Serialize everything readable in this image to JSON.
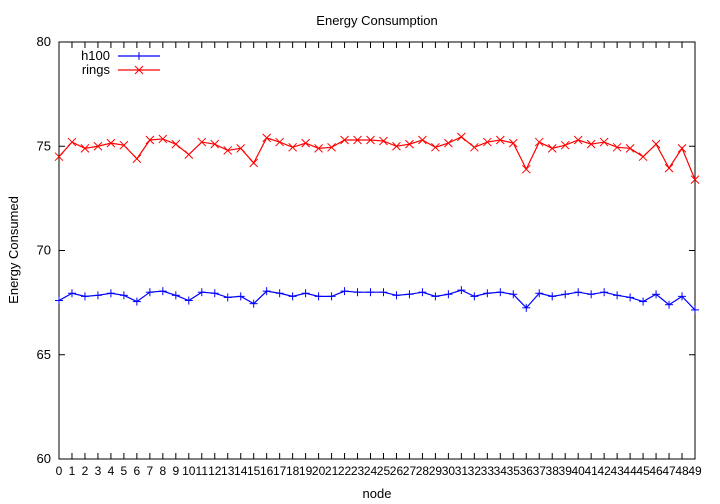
{
  "chart_data": {
    "type": "line",
    "title": "Energy Consumption",
    "xlabel": "node",
    "ylabel": "Energy Consumed",
    "xlim": [
      0,
      49
    ],
    "ylim": [
      60,
      80
    ],
    "y_ticks": [
      60,
      65,
      70,
      75,
      80
    ],
    "x": [
      0,
      1,
      2,
      3,
      4,
      5,
      6,
      7,
      8,
      9,
      10,
      11,
      12,
      13,
      14,
      15,
      16,
      17,
      18,
      19,
      20,
      21,
      22,
      23,
      24,
      25,
      26,
      27,
      28,
      29,
      30,
      31,
      32,
      33,
      34,
      35,
      36,
      37,
      38,
      39,
      40,
      41,
      42,
      43,
      44,
      45,
      46,
      47,
      48,
      49
    ],
    "grid": false,
    "legend_position": "top-left",
    "series": [
      {
        "name": "h100",
        "color": "#0000ff",
        "marker": "plus",
        "values": [
          67.6,
          67.95,
          67.8,
          67.85,
          67.95,
          67.85,
          67.55,
          68.0,
          68.05,
          67.85,
          67.6,
          68.0,
          67.95,
          67.75,
          67.8,
          67.45,
          68.05,
          67.95,
          67.8,
          67.95,
          67.8,
          67.8,
          68.05,
          68.0,
          68.0,
          68.0,
          67.85,
          67.9,
          68.0,
          67.8,
          67.9,
          68.1,
          67.8,
          67.95,
          68.0,
          67.9,
          67.25,
          67.95,
          67.8,
          67.9,
          68.0,
          67.9,
          68.0,
          67.85,
          67.75,
          67.55,
          67.9,
          67.4,
          67.8,
          67.15
        ]
      },
      {
        "name": "rings",
        "color": "#ff0000",
        "marker": "x",
        "values": [
          74.5,
          75.2,
          74.9,
          75.0,
          75.15,
          75.05,
          74.4,
          75.3,
          75.35,
          75.1,
          74.6,
          75.2,
          75.1,
          74.8,
          74.9,
          74.2,
          75.4,
          75.2,
          74.95,
          75.15,
          74.9,
          74.95,
          75.3,
          75.3,
          75.3,
          75.25,
          75.0,
          75.1,
          75.3,
          74.95,
          75.15,
          75.45,
          74.95,
          75.2,
          75.3,
          75.15,
          73.9,
          75.2,
          74.9,
          75.05,
          75.3,
          75.1,
          75.2,
          74.95,
          74.9,
          74.5,
          75.1,
          73.95,
          74.9,
          73.4
        ]
      }
    ]
  }
}
